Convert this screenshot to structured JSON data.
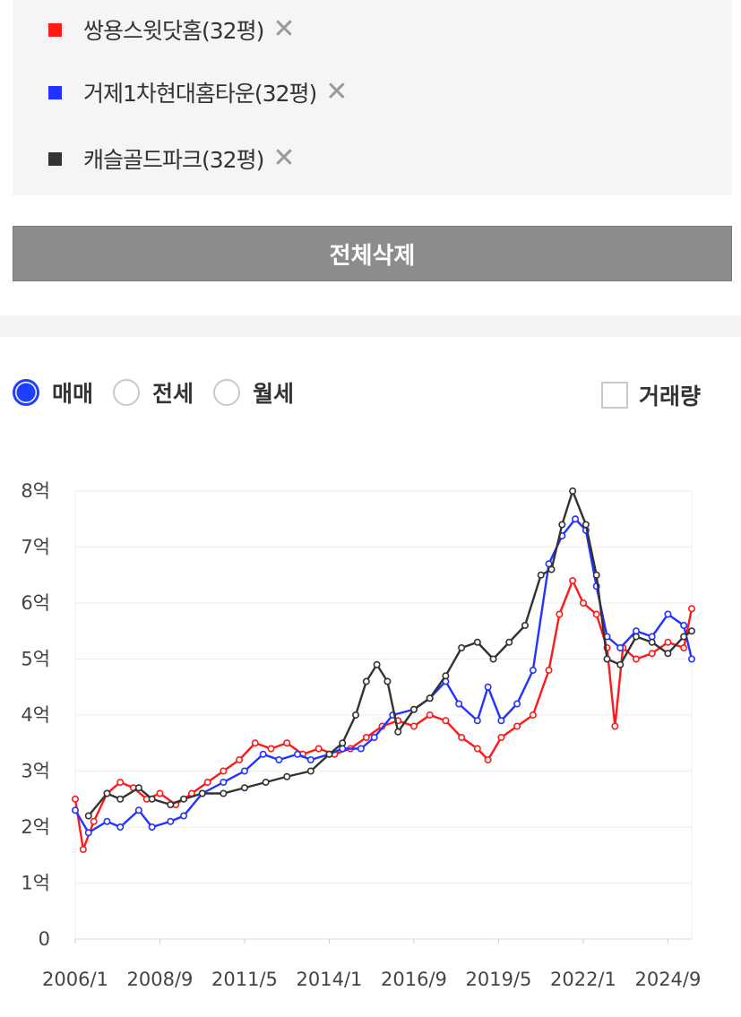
{
  "legend": {
    "items": [
      {
        "label": "쌍용스윗닷홈(32평)",
        "color": "#ff1a1a",
        "remove": "✕"
      },
      {
        "label": "거제1차현대홈타운(32평)",
        "color": "#2233ff",
        "remove": "✕"
      },
      {
        "label": "캐슬골드파크(32평)",
        "color": "#333333",
        "remove": "✕"
      }
    ],
    "delete_all": "전체삭제"
  },
  "filters": {
    "radios": [
      {
        "label": "매매",
        "checked": true
      },
      {
        "label": "전세",
        "checked": false
      },
      {
        "label": "월세",
        "checked": false
      }
    ],
    "volume_checkbox": {
      "label": "거래량",
      "checked": false
    }
  },
  "chart_data": {
    "type": "line",
    "x_tick_labels": [
      "2006/1",
      "2008/9",
      "2011/5",
      "2014/1",
      "2016/9",
      "2019/5",
      "2022/1",
      "2024/9"
    ],
    "x_range": [
      "2006/1",
      "2025/6"
    ],
    "y_tick_labels": [
      "0",
      "1억",
      "2억",
      "3억",
      "4억",
      "5억",
      "6억",
      "7억",
      "8억"
    ],
    "ylim": [
      0,
      8
    ],
    "y_unit": "억",
    "grid": "horizontal",
    "series": [
      {
        "name": "쌍용스윗닷홈(32평)",
        "color": "#ff1a1a",
        "points": [
          [
            "2006/1",
            2.5
          ],
          [
            "2006/4",
            1.6
          ],
          [
            "2006/8",
            2.1
          ],
          [
            "2007/1",
            2.6
          ],
          [
            "2007/6",
            2.8
          ],
          [
            "2007/11",
            2.7
          ],
          [
            "2008/4",
            2.5
          ],
          [
            "2008/9",
            2.6
          ],
          [
            "2009/3",
            2.4
          ],
          [
            "2009/9",
            2.6
          ],
          [
            "2010/3",
            2.8
          ],
          [
            "2010/9",
            3.0
          ],
          [
            "2011/3",
            3.2
          ],
          [
            "2011/9",
            3.5
          ],
          [
            "2012/3",
            3.4
          ],
          [
            "2012/9",
            3.5
          ],
          [
            "2013/3",
            3.3
          ],
          [
            "2013/9",
            3.4
          ],
          [
            "2014/3",
            3.3
          ],
          [
            "2014/9",
            3.4
          ],
          [
            "2015/3",
            3.6
          ],
          [
            "2015/9",
            3.8
          ],
          [
            "2016/3",
            3.9
          ],
          [
            "2016/9",
            3.8
          ],
          [
            "2017/3",
            4.0
          ],
          [
            "2017/9",
            3.9
          ],
          [
            "2018/3",
            3.6
          ],
          [
            "2018/9",
            3.4
          ],
          [
            "2019/1",
            3.2
          ],
          [
            "2019/6",
            3.6
          ],
          [
            "2019/12",
            3.8
          ],
          [
            "2020/6",
            4.0
          ],
          [
            "2020/12",
            4.8
          ],
          [
            "2021/4",
            5.8
          ],
          [
            "2021/9",
            6.4
          ],
          [
            "2022/1",
            6.0
          ],
          [
            "2022/6",
            5.8
          ],
          [
            "2022/10",
            5.2
          ],
          [
            "2023/1",
            3.8
          ],
          [
            "2023/4",
            5.2
          ],
          [
            "2023/9",
            5.0
          ],
          [
            "2024/3",
            5.1
          ],
          [
            "2024/9",
            5.3
          ],
          [
            "2025/3",
            5.2
          ],
          [
            "2025/6",
            5.9
          ]
        ]
      },
      {
        "name": "거제1차현대홈타운(32평)",
        "color": "#2233ff",
        "points": [
          [
            "2006/1",
            2.3
          ],
          [
            "2006/6",
            1.9
          ],
          [
            "2007/1",
            2.1
          ],
          [
            "2007/6",
            2.0
          ],
          [
            "2008/1",
            2.3
          ],
          [
            "2008/6",
            2.0
          ],
          [
            "2009/1",
            2.1
          ],
          [
            "2009/6",
            2.2
          ],
          [
            "2010/1",
            2.6
          ],
          [
            "2010/9",
            2.8
          ],
          [
            "2011/5",
            3.0
          ],
          [
            "2011/12",
            3.3
          ],
          [
            "2012/6",
            3.2
          ],
          [
            "2013/1",
            3.3
          ],
          [
            "2013/6",
            3.2
          ],
          [
            "2014/1",
            3.3
          ],
          [
            "2014/6",
            3.4
          ],
          [
            "2015/1",
            3.4
          ],
          [
            "2015/6",
            3.6
          ],
          [
            "2016/1",
            4.0
          ],
          [
            "2016/9",
            4.1
          ],
          [
            "2017/3",
            4.3
          ],
          [
            "2017/9",
            4.6
          ],
          [
            "2018/2",
            4.2
          ],
          [
            "2018/9",
            3.9
          ],
          [
            "2019/1",
            4.5
          ],
          [
            "2019/6",
            3.9
          ],
          [
            "2019/12",
            4.2
          ],
          [
            "2020/6",
            4.8
          ],
          [
            "2020/12",
            6.7
          ],
          [
            "2021/5",
            7.2
          ],
          [
            "2021/10",
            7.5
          ],
          [
            "2022/2",
            7.3
          ],
          [
            "2022/6",
            6.3
          ],
          [
            "2022/10",
            5.4
          ],
          [
            "2023/3",
            5.2
          ],
          [
            "2023/9",
            5.5
          ],
          [
            "2024/3",
            5.4
          ],
          [
            "2024/9",
            5.8
          ],
          [
            "2025/3",
            5.6
          ],
          [
            "2025/6",
            5.0
          ]
        ]
      },
      {
        "name": "캐슬골드파크(32평)",
        "color": "#333333",
        "points": [
          [
            "2006/6",
            2.2
          ],
          [
            "2007/1",
            2.6
          ],
          [
            "2007/6",
            2.5
          ],
          [
            "2008/1",
            2.7
          ],
          [
            "2008/6",
            2.5
          ],
          [
            "2009/1",
            2.4
          ],
          [
            "2009/6",
            2.5
          ],
          [
            "2010/1",
            2.6
          ],
          [
            "2010/9",
            2.6
          ],
          [
            "2011/5",
            2.7
          ],
          [
            "2012/1",
            2.8
          ],
          [
            "2012/9",
            2.9
          ],
          [
            "2013/6",
            3.0
          ],
          [
            "2014/1",
            3.3
          ],
          [
            "2014/6",
            3.5
          ],
          [
            "2014/11",
            4.0
          ],
          [
            "2015/3",
            4.6
          ],
          [
            "2015/7",
            4.9
          ],
          [
            "2015/11",
            4.6
          ],
          [
            "2016/3",
            3.7
          ],
          [
            "2016/9",
            4.1
          ],
          [
            "2017/3",
            4.3
          ],
          [
            "2017/9",
            4.7
          ],
          [
            "2018/3",
            5.2
          ],
          [
            "2018/9",
            5.3
          ],
          [
            "2019/3",
            5.0
          ],
          [
            "2019/9",
            5.3
          ],
          [
            "2020/3",
            5.6
          ],
          [
            "2020/9",
            6.5
          ],
          [
            "2021/1",
            6.6
          ],
          [
            "2021/5",
            7.4
          ],
          [
            "2021/9",
            8.0
          ],
          [
            "2022/2",
            7.4
          ],
          [
            "2022/6",
            6.5
          ],
          [
            "2022/10",
            5.0
          ],
          [
            "2023/3",
            4.9
          ],
          [
            "2023/9",
            5.4
          ],
          [
            "2024/3",
            5.3
          ],
          [
            "2024/9",
            5.1
          ],
          [
            "2025/3",
            5.4
          ],
          [
            "2025/6",
            5.5
          ]
        ]
      }
    ]
  }
}
